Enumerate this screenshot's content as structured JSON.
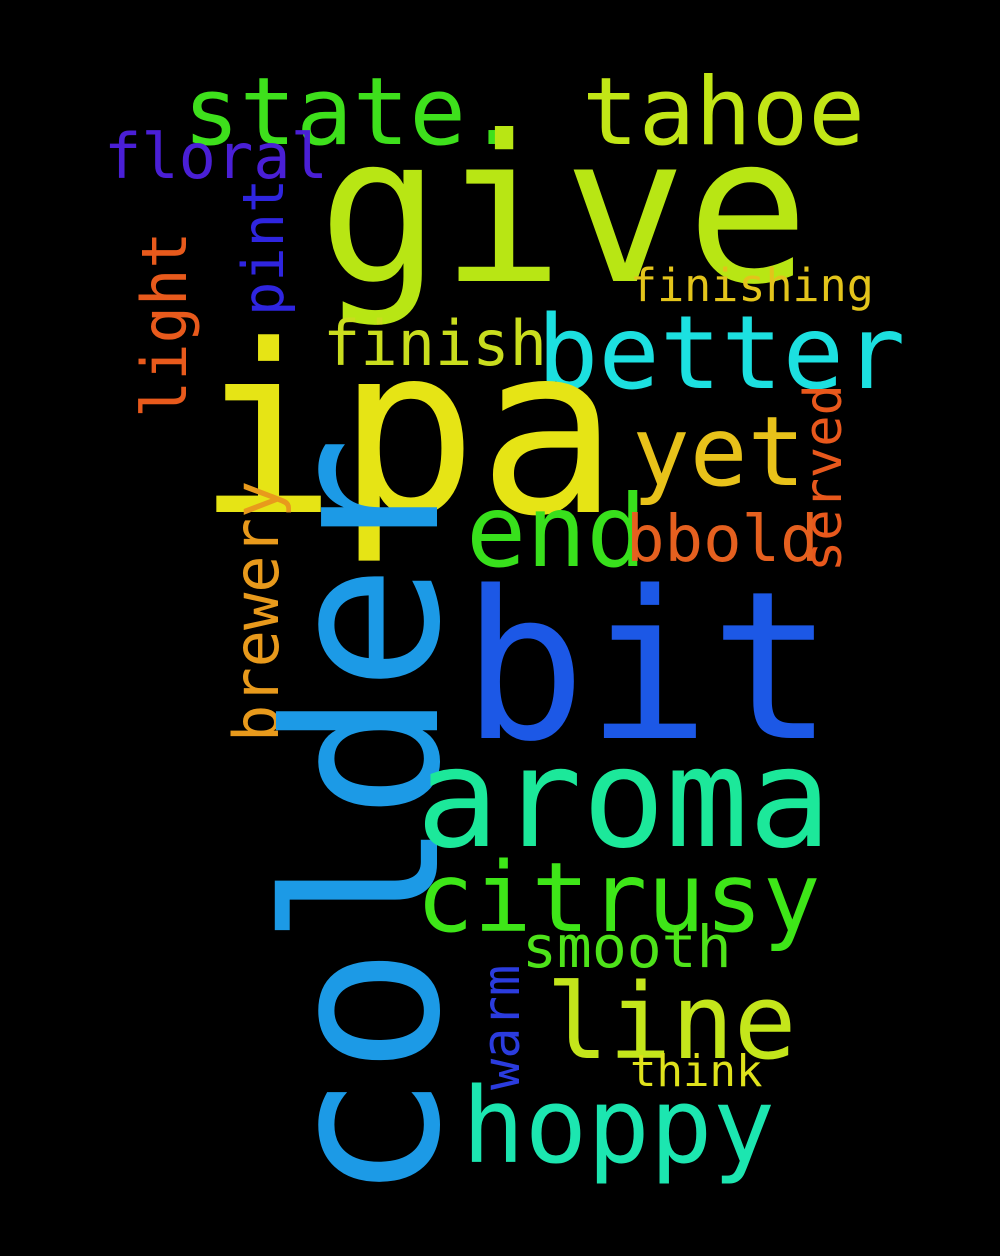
{
  "words": [
    {
      "key": "state",
      "text": "state.",
      "color": "#3ee01c",
      "orientation": "horizontal"
    },
    {
      "key": "tahoe",
      "text": "tahoe",
      "color": "#c2e616",
      "orientation": "horizontal"
    },
    {
      "key": "give",
      "text": "give",
      "color": "#b8e614",
      "orientation": "horizontal"
    },
    {
      "key": "floral",
      "text": "floral",
      "color": "#4a1fd6",
      "orientation": "horizontal"
    },
    {
      "key": "pint",
      "text": "pint",
      "color": "#2f25e0",
      "orientation": "vertical"
    },
    {
      "key": "light",
      "text": "light",
      "color": "#e85a1c",
      "orientation": "vertical"
    },
    {
      "key": "finishing",
      "text": "finishing",
      "color": "#e3c41b",
      "orientation": "horizontal"
    },
    {
      "key": "finish",
      "text": "finish",
      "color": "#c9dd1e",
      "orientation": "horizontal"
    },
    {
      "key": "better",
      "text": "better",
      "color": "#1ce0e0",
      "orientation": "horizontal"
    },
    {
      "key": "ipa",
      "text": "ipa",
      "color": "#e6e415",
      "orientation": "horizontal"
    },
    {
      "key": "served",
      "text": "served",
      "color": "#e8581c",
      "orientation": "vertical"
    },
    {
      "key": "yet",
      "text": "yet",
      "color": "#e8c21a",
      "orientation": "horizontal"
    },
    {
      "key": "end",
      "text": "end",
      "color": "#38e01c",
      "orientation": "horizontal"
    },
    {
      "key": "bbold",
      "text": "bbold",
      "color": "#e5601f",
      "orientation": "horizontal"
    },
    {
      "key": "brewery",
      "text": "brewery",
      "color": "#e89a1c",
      "orientation": "vertical"
    },
    {
      "key": "colder",
      "text": "colder",
      "color": "#1c9ae6",
      "orientation": "vertical"
    },
    {
      "key": "bit",
      "text": "bit",
      "color": "#1c58e6",
      "orientation": "horizontal"
    },
    {
      "key": "aroma",
      "text": "aroma",
      "color": "#1ce89a",
      "orientation": "horizontal"
    },
    {
      "key": "citrusy",
      "text": "citrusy",
      "color": "#3ee618",
      "orientation": "horizontal"
    },
    {
      "key": "smooth",
      "text": "smooth",
      "color": "#4ee31a",
      "orientation": "horizontal"
    },
    {
      "key": "warm",
      "text": "warm",
      "color": "#2b3cde",
      "orientation": "vertical"
    },
    {
      "key": "line",
      "text": "line",
      "color": "#c4e61b",
      "orientation": "horizontal"
    },
    {
      "key": "think",
      "text": "think",
      "color": "#dfe21c",
      "orientation": "horizontal"
    },
    {
      "key": "hoppy",
      "text": "hoppy",
      "color": "#1ce6b0",
      "orientation": "horizontal"
    }
  ]
}
